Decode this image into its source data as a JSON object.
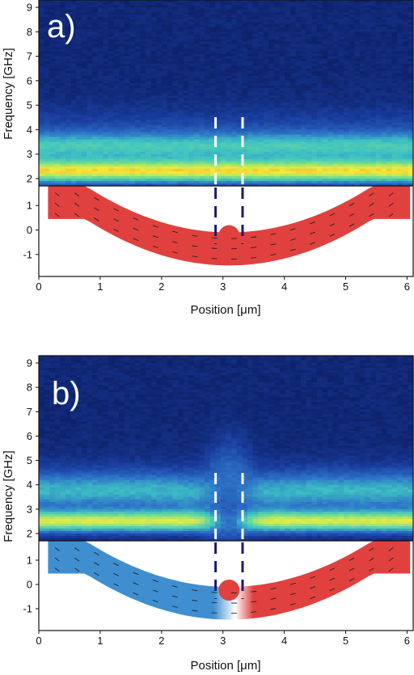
{
  "chart_data": [
    {
      "type": "heatmap",
      "panel_label": "a)",
      "xlabel": "Position [μm]",
      "ylabel": "Frequency [GHz]",
      "xlim": [
        0,
        6.1
      ],
      "ylim": [
        1.7,
        9.3
      ],
      "x_ticks": [
        "0",
        "1",
        "2",
        "3",
        "4",
        "5",
        "6"
      ],
      "y_ticks": [
        "2",
        "3",
        "4",
        "5",
        "6",
        "7",
        "8",
        "9"
      ],
      "grid": false,
      "features": {
        "mode_bands_ghz": [
          2.3,
          3.3
        ],
        "dashed_markers_um": [
          2.88,
          3.32
        ]
      },
      "inset": {
        "type": "vector_field",
        "y_ticks": [
          "1",
          "0",
          "-1"
        ],
        "ylim": [
          -1.9,
          1.8
        ],
        "domain_colors": [
          "#e0413f"
        ],
        "domain_wall_um": null
      }
    },
    {
      "type": "heatmap",
      "panel_label": "b)",
      "xlabel": "Position [μm]",
      "ylabel": "Frequency [GHz]",
      "xlim": [
        0,
        6.1
      ],
      "ylim": [
        1.7,
        9.3
      ],
      "x_ticks": [
        "0",
        "1",
        "2",
        "3",
        "4",
        "5",
        "6"
      ],
      "y_ticks": [
        "2",
        "3",
        "4",
        "5",
        "6",
        "7",
        "8",
        "9"
      ],
      "grid": false,
      "features": {
        "mode_bands_ghz": [
          2.5,
          3.9
        ],
        "dashed_markers_um": [
          2.88,
          3.32
        ]
      },
      "inset": {
        "type": "vector_field",
        "y_ticks": [
          "1",
          "0",
          "-1"
        ],
        "ylim": [
          -1.9,
          1.8
        ],
        "domain_colors": [
          "#3f8fd0",
          "#e0413f"
        ],
        "domain_wall_um": 3.2
      }
    }
  ],
  "colors": {
    "colormap": [
      "#0b1a5c",
      "#1a3fa0",
      "#2e74c8",
      "#3ec3c3",
      "#7ee08a",
      "#f2ea3a",
      "#f27a1e",
      "#d9251c"
    ],
    "marker_white": "#ffffff",
    "marker_dark": "#1a1a6e"
  }
}
